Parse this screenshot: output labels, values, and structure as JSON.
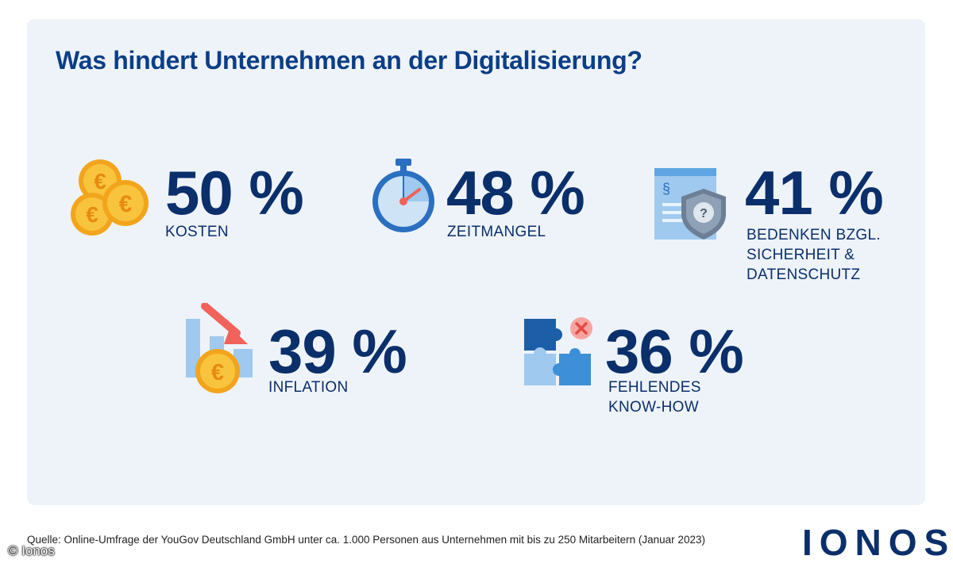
{
  "chart_data": {
    "type": "table",
    "title": "Was hindert Unternehmen an der Digitalisierung?",
    "unit": "%",
    "items": [
      {
        "value": 50,
        "value_label": "50 %",
        "label_lines": [
          "KOSTEN"
        ],
        "icon": "euro-coins-icon"
      },
      {
        "value": 48,
        "value_label": "48 %",
        "label_lines": [
          "ZEITMANGEL"
        ],
        "icon": "stopwatch-icon"
      },
      {
        "value": 41,
        "value_label": "41 %",
        "label_lines": [
          "BEDENKEN BZGL.",
          "SICHERHEIT &",
          "DATENSCHUTZ"
        ],
        "icon": "document-shield-icon"
      },
      {
        "value": 39,
        "value_label": "39 %",
        "label_lines": [
          "INFLATION"
        ],
        "icon": "falling-chart-euro-icon"
      },
      {
        "value": 36,
        "value_label": "36 %",
        "label_lines": [
          "FEHLENDES",
          "KNOW-HOW"
        ],
        "icon": "puzzle-icon"
      }
    ]
  },
  "source": "Quelle: Online-Umfrage der YouGov Deutschland GmbH unter ca. 1.000 Personen aus Unternehmen mit bis zu 250 Mitarbeitern (Januar 2023)",
  "logo": "IONOS",
  "copyright": "© Ionos",
  "colors": {
    "panel": "#eef3f9",
    "title": "#0b3e86",
    "text": "#0b2f6b",
    "coin": "#f6b72f",
    "light_blue": "#9fc9ef",
    "mid_blue": "#3d8fd8",
    "dark_blue": "#1d5ea8",
    "red": "#f0625a"
  }
}
